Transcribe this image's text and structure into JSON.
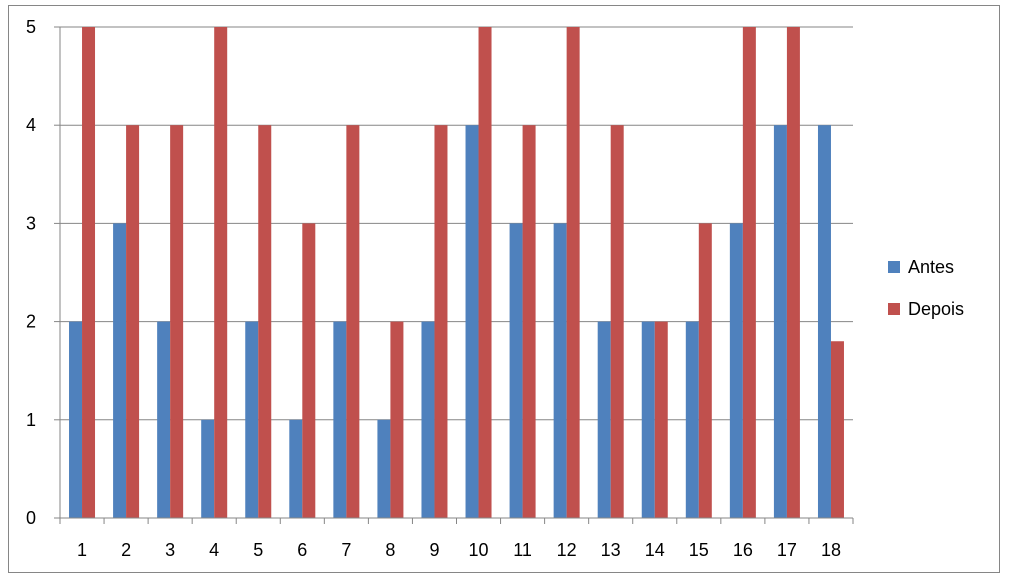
{
  "chart_data": {
    "type": "bar",
    "categories": [
      "1",
      "2",
      "3",
      "4",
      "5",
      "6",
      "7",
      "8",
      "9",
      "10",
      "11",
      "12",
      "13",
      "14",
      "15",
      "16",
      "17",
      "18"
    ],
    "series": [
      {
        "name": "Antes",
        "color": "#4f81bd",
        "values": [
          2,
          3,
          2,
          1,
          2,
          1,
          2,
          1,
          2,
          4,
          3,
          3,
          2,
          2,
          2,
          3,
          4,
          4
        ]
      },
      {
        "name": "Depois",
        "color": "#c0504d",
        "values": [
          5,
          4,
          4,
          5,
          4,
          3,
          4,
          2,
          4,
          5,
          4,
          5,
          4,
          2,
          3,
          5,
          5,
          1.8
        ]
      }
    ],
    "ylim": [
      0,
      5
    ],
    "yticks": [
      "0",
      "1",
      "2",
      "3",
      "4",
      "5"
    ],
    "grid": true,
    "legend": "right",
    "title": "",
    "xlabel": "",
    "ylabel": ""
  }
}
